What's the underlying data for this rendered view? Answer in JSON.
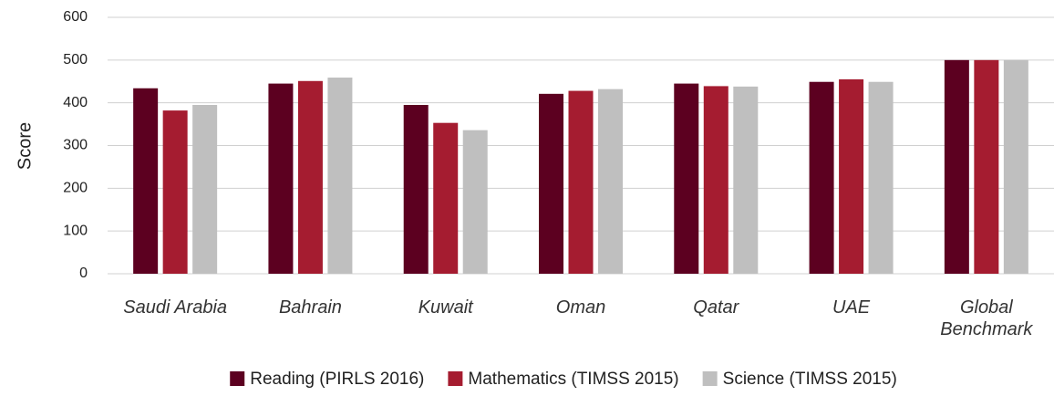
{
  "chart_data": {
    "type": "bar",
    "y_label": "Score",
    "categories": [
      "Saudi Arabia",
      "Bahrain",
      "Kuwait",
      "Oman",
      "Qatar",
      "UAE",
      "Global Benchmark"
    ],
    "series": [
      {
        "name": "Reading (PIRLS 2016)",
        "color": "#5c0020",
        "values": [
          434,
          445,
          395,
          421,
          445,
          449,
          500
        ]
      },
      {
        "name": "Mathematics (TIMSS 2015)",
        "color": "#a51c30",
        "values": [
          382,
          451,
          353,
          428,
          439,
          455,
          500
        ]
      },
      {
        "name": "Science (TIMSS 2015)",
        "color": "#bfbfbf",
        "values": [
          395,
          459,
          336,
          432,
          438,
          449,
          500
        ]
      }
    ],
    "ylim": [
      0,
      600
    ],
    "yticks": [
      0,
      100,
      200,
      300,
      400,
      500,
      600
    ],
    "grid": true,
    "legend": "bottom"
  }
}
